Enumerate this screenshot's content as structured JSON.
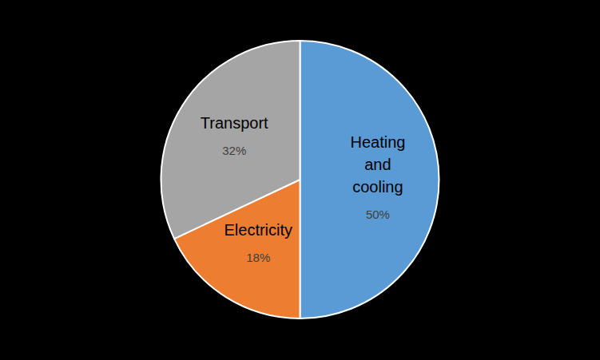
{
  "chart_data": {
    "type": "pie",
    "categories": [
      "Heating and cooling",
      "Electricity",
      "Transport"
    ],
    "values": [
      50,
      18,
      32
    ],
    "value_labels": [
      "50%",
      "18%",
      "32%"
    ],
    "colors": [
      "#5b9bd5",
      "#ed7d31",
      "#a5a5a5"
    ],
    "data_labels": true
  }
}
